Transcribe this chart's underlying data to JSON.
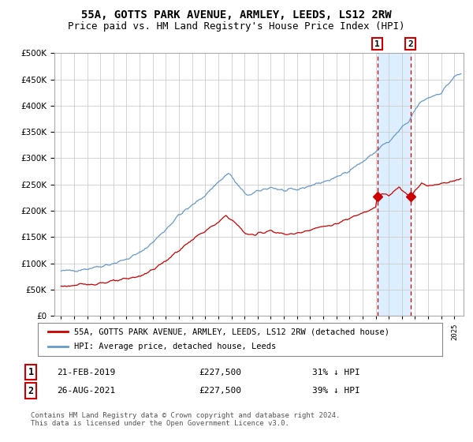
{
  "title": "55A, GOTTS PARK AVENUE, ARMLEY, LEEDS, LS12 2RW",
  "subtitle": "Price paid vs. HM Land Registry's House Price Index (HPI)",
  "legend_line1": "55A, GOTTS PARK AVENUE, ARMLEY, LEEDS, LS12 2RW (detached house)",
  "legend_line2": "HPI: Average price, detached house, Leeds",
  "transaction1_x": 2019.12,
  "transaction2_x": 2021.65,
  "transaction1_y": 227500,
  "transaction2_y": 227500,
  "hpi_color": "#6699cc",
  "price_color": "#cc0000",
  "dashed_color": "#cc0000",
  "shade_color": "#ddeeff",
  "grid_color": "#cccccc",
  "background_color": "#ffffff",
  "title_fontsize": 10,
  "subtitle_fontsize": 9,
  "footer_text": "Contains HM Land Registry data © Crown copyright and database right 2024.\nThis data is licensed under the Open Government Licence v3.0.",
  "ylim": [
    0,
    500000
  ],
  "yticks": [
    0,
    50000,
    100000,
    150000,
    200000,
    250000,
    300000,
    350000,
    400000,
    450000,
    500000
  ],
  "xlim_start": 1994.5,
  "xlim_end": 2025.7
}
